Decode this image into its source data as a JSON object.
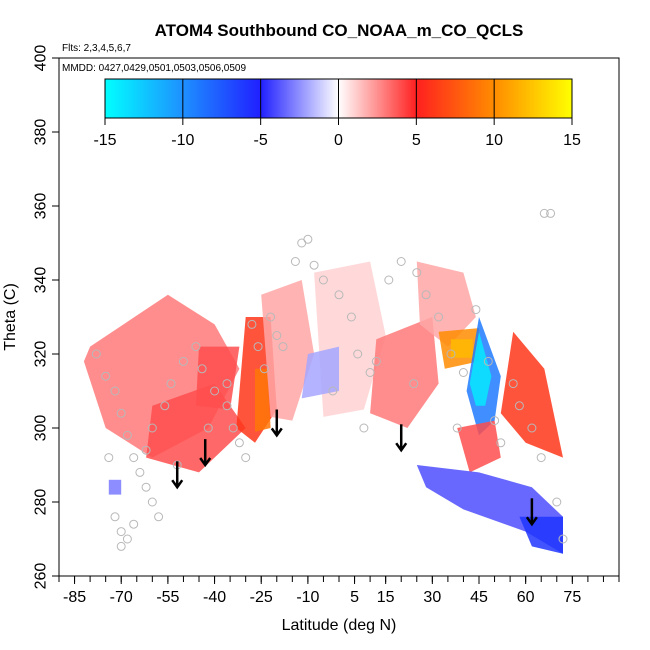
{
  "chart_data": {
    "type": "heatmap",
    "title": "ATOM4 Southbound CO_NOAA_m_CO_QCLS",
    "flights_note": "Flts: 2,3,4,5,6,7",
    "dates_note": "MMDD: 0427,0429,0501,0503,0506,0509",
    "xlabel": "Latitude (deg N)",
    "ylabel": "Theta (C)",
    "xlim": [
      -90,
      90
    ],
    "ylim": [
      260,
      400
    ],
    "x_tick_labels": [
      "-85",
      "-70",
      "-55",
      "-40",
      "-25",
      "-10",
      "5",
      "15",
      "30",
      "45",
      "60",
      "75"
    ],
    "x_tick_values": [
      -85,
      -70,
      -55,
      -40,
      -25,
      -10,
      5,
      15,
      30,
      45,
      60,
      75
    ],
    "x_minor_step": 5,
    "y_ticks": [
      260,
      280,
      300,
      320,
      340,
      360,
      380,
      400
    ],
    "colorbar": {
      "min": -15,
      "max": 15,
      "tick_labels": [
        "-15",
        "-10",
        "-5",
        "0",
        "5",
        "10",
        "15"
      ],
      "tick_values": [
        -15,
        -10,
        -5,
        0,
        5,
        10,
        15
      ],
      "stops": [
        {
          "value": -15,
          "color": "#00ffff"
        },
        {
          "value": -10,
          "color": "#1e90ff"
        },
        {
          "value": -5,
          "color": "#2020ff"
        },
        {
          "value": 0,
          "color": "#ffffff"
        },
        {
          "value": 5,
          "color": "#ff2020"
        },
        {
          "value": 10,
          "color": "#ff8c00"
        },
        {
          "value": 15,
          "color": "#ffff00"
        }
      ]
    },
    "tropopause_arrows": [
      {
        "lat": -52,
        "theta": 288
      },
      {
        "lat": -43,
        "theta": 294
      },
      {
        "lat": -20,
        "theta": 302
      },
      {
        "lat": 20,
        "theta": 298
      },
      {
        "lat": 62,
        "theta": 278
      }
    ],
    "regions": [
      {
        "name": "southern-high-lat-positive",
        "value": 3,
        "points": [
          [
            -80,
            322
          ],
          [
            -55,
            336
          ],
          [
            -40,
            328
          ],
          [
            -32,
            316
          ],
          [
            -42,
            300
          ],
          [
            -60,
            292
          ],
          [
            -75,
            300
          ],
          [
            -82,
            318
          ]
        ]
      },
      {
        "name": "southern-mid-lat-positive",
        "value": 4,
        "points": [
          [
            -60,
            306
          ],
          [
            -40,
            312
          ],
          [
            -30,
            300
          ],
          [
            -45,
            288
          ],
          [
            -62,
            292
          ]
        ]
      },
      {
        "name": "midlat-40s-positive",
        "value": 4,
        "points": [
          [
            -45,
            322
          ],
          [
            -32,
            322
          ],
          [
            -35,
            305
          ],
          [
            -46,
            306
          ]
        ]
      },
      {
        "name": "tropical-south-strong-positive",
        "value": 6,
        "points": [
          [
            -30,
            330
          ],
          [
            -22,
            330
          ],
          [
            -20,
            305
          ],
          [
            -27,
            296
          ],
          [
            -33,
            300
          ]
        ]
      },
      {
        "name": "tropical-south-core",
        "value": 9,
        "points": [
          [
            -27,
            316
          ],
          [
            -23,
            316
          ],
          [
            -22,
            300
          ],
          [
            -27,
            299
          ]
        ]
      },
      {
        "name": "tropical-south-weak",
        "value": 2,
        "points": [
          [
            -25,
            336
          ],
          [
            -12,
            340
          ],
          [
            -8,
            320
          ],
          [
            -15,
            302
          ],
          [
            -22,
            303
          ]
        ]
      },
      {
        "name": "equator-near-zero-positive",
        "value": 1,
        "points": [
          [
            -8,
            342
          ],
          [
            10,
            345
          ],
          [
            15,
            325
          ],
          [
            8,
            305
          ],
          [
            -5,
            303
          ]
        ]
      },
      {
        "name": "equator-negative",
        "value": -2,
        "points": [
          [
            -10,
            320
          ],
          [
            0,
            322
          ],
          [
            0,
            310
          ],
          [
            -12,
            308
          ]
        ]
      },
      {
        "name": "northern-tropics-positive",
        "value": 3,
        "points": [
          [
            12,
            324
          ],
          [
            30,
            330
          ],
          [
            32,
            312
          ],
          [
            22,
            300
          ],
          [
            10,
            304
          ]
        ]
      },
      {
        "name": "northern-subtropics-weak",
        "value": 2,
        "points": [
          [
            25,
            345
          ],
          [
            40,
            342
          ],
          [
            44,
            330
          ],
          [
            35,
            322
          ],
          [
            26,
            328
          ]
        ]
      },
      {
        "name": "north-30-strong",
        "value": 10,
        "points": [
          [
            32,
            326
          ],
          [
            45,
            327
          ],
          [
            45,
            318
          ],
          [
            34,
            316
          ]
        ]
      },
      {
        "name": "north-30-orange",
        "value": 12,
        "points": [
          [
            36,
            324
          ],
          [
            43,
            324
          ],
          [
            43,
            319
          ],
          [
            36,
            319
          ]
        ]
      },
      {
        "name": "north-45-negative-band",
        "value": -9,
        "points": [
          [
            45,
            330
          ],
          [
            52,
            314
          ],
          [
            50,
            302
          ],
          [
            45,
            298
          ],
          [
            41,
            310
          ]
        ]
      },
      {
        "name": "north-45-cyan-core",
        "value": -14,
        "points": [
          [
            45,
            326
          ],
          [
            49,
            314
          ],
          [
            47,
            306
          ],
          [
            44,
            306
          ],
          [
            42,
            312
          ]
        ]
      },
      {
        "name": "north-mid-positive",
        "value": 4,
        "points": [
          [
            38,
            300
          ],
          [
            50,
            302
          ],
          [
            52,
            292
          ],
          [
            42,
            288
          ]
        ]
      },
      {
        "name": "north-60-positive",
        "value": 6,
        "points": [
          [
            56,
            326
          ],
          [
            66,
            316
          ],
          [
            72,
            292
          ],
          [
            60,
            296
          ],
          [
            52,
            304
          ]
        ]
      },
      {
        "name": "north-high-negative",
        "value": -4,
        "points": [
          [
            25,
            290
          ],
          [
            45,
            288
          ],
          [
            62,
            284
          ],
          [
            72,
            276
          ],
          [
            72,
            266
          ],
          [
            60,
            272
          ],
          [
            40,
            278
          ],
          [
            28,
            284
          ]
        ]
      },
      {
        "name": "north-lowest-negative",
        "value": -6,
        "points": [
          [
            58,
            276
          ],
          [
            72,
            276
          ],
          [
            72,
            266
          ],
          [
            62,
            268
          ]
        ]
      },
      {
        "name": "south-low-negative",
        "value": -3,
        "points": [
          [
            -74,
            286
          ],
          [
            -70,
            286
          ],
          [
            -70,
            282
          ],
          [
            -74,
            282
          ]
        ]
      }
    ],
    "sample_points": [
      [
        -78,
        320
      ],
      [
        -75,
        314
      ],
      [
        -72,
        310
      ],
      [
        -70,
        304
      ],
      [
        -68,
        298
      ],
      [
        -66,
        292
      ],
      [
        -64,
        288
      ],
      [
        -62,
        284
      ],
      [
        -60,
        280
      ],
      [
        -58,
        276
      ],
      [
        -72,
        276
      ],
      [
        -70,
        272
      ],
      [
        -68,
        270
      ],
      [
        -70,
        268
      ],
      [
        -66,
        274
      ],
      [
        -60,
        300
      ],
      [
        -56,
        306
      ],
      [
        -54,
        312
      ],
      [
        -50,
        318
      ],
      [
        -46,
        322
      ],
      [
        -44,
        316
      ],
      [
        -40,
        310
      ],
      [
        -36,
        306
      ],
      [
        -34,
        300
      ],
      [
        -32,
        296
      ],
      [
        -30,
        292
      ],
      [
        -28,
        328
      ],
      [
        -26,
        322
      ],
      [
        -24,
        316
      ],
      [
        -22,
        330
      ],
      [
        -20,
        325
      ],
      [
        -14,
        345
      ],
      [
        -12,
        350
      ],
      [
        -10,
        351
      ],
      [
        -8,
        344
      ],
      [
        -5,
        340
      ],
      [
        0,
        336
      ],
      [
        4,
        330
      ],
      [
        6,
        320
      ],
      [
        10,
        315
      ],
      [
        12,
        318
      ],
      [
        16,
        340
      ],
      [
        20,
        345
      ],
      [
        25,
        342
      ],
      [
        28,
        336
      ],
      [
        32,
        330
      ],
      [
        36,
        320
      ],
      [
        40,
        315
      ],
      [
        44,
        332
      ],
      [
        48,
        318
      ],
      [
        50,
        302
      ],
      [
        52,
        296
      ],
      [
        56,
        312
      ],
      [
        58,
        306
      ],
      [
        62,
        300
      ],
      [
        65,
        292
      ],
      [
        66,
        358
      ],
      [
        68,
        358
      ],
      [
        70,
        280
      ],
      [
        72,
        270
      ],
      [
        -74,
        292
      ],
      [
        -62,
        294
      ],
      [
        -52,
        290
      ],
      [
        -42,
        300
      ],
      [
        -36,
        312
      ],
      [
        -18,
        322
      ],
      [
        -2,
        310
      ],
      [
        8,
        300
      ],
      [
        24,
        312
      ],
      [
        38,
        300
      ]
    ]
  }
}
